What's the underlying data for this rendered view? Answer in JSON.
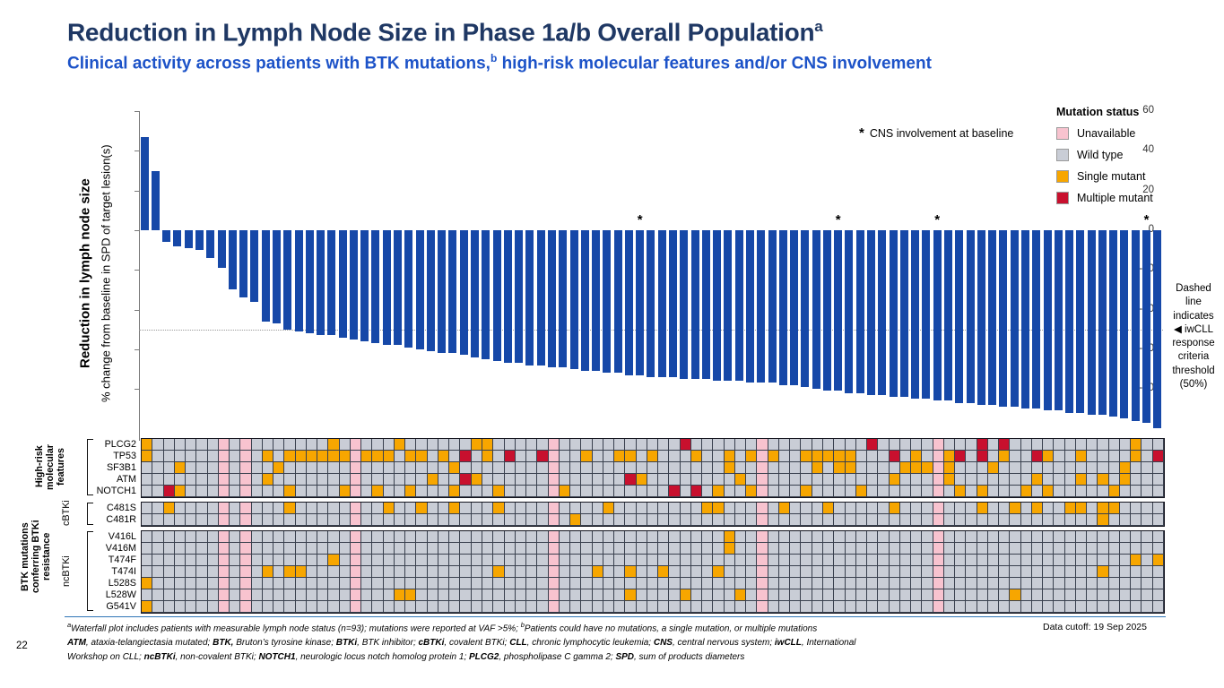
{
  "slide": {
    "title": "Reduction in Lymph Node Size in Phase 1a/b Overall Population",
    "title_sup": "a",
    "subtitle_pre": "Clinical activity across patients with BTK mutations,",
    "subtitle_sup": "b",
    "subtitle_post": " high-risk molecular features and/or CNS involvement",
    "page_number": "22",
    "data_cutoff": "Data cutoff: 19 Sep 2025"
  },
  "colors": {
    "bar_blue": "#1648a8",
    "title_navy": "#1f3864",
    "subtitle_blue": "#1d53c8",
    "unavailable_pink": "#f8c3cf",
    "wild_type_gray": "#c9cdd6",
    "single_mutant_orange": "#f7a600",
    "multiple_mutant_red": "#c8102e",
    "divider_blue": "#2e75b6"
  },
  "chart_data": {
    "type": "bar",
    "title": "",
    "ylabel_bold": "Reduction in lymph node size",
    "ylabel": "% change from baseline in SPD of target lesion(s)",
    "xlabel": "",
    "ylim": [
      -105,
      60
    ],
    "yticks": [
      60,
      40,
      20,
      0,
      -20,
      -40,
      -60,
      -80
    ],
    "n_patients": 93,
    "grid": false,
    "threshold_value": -50,
    "values": [
      47,
      30,
      -6,
      -8,
      -9,
      -10,
      -14,
      -19,
      -30,
      -34,
      -36,
      -46,
      -47,
      -50,
      -51,
      -52,
      -53,
      -53,
      -54,
      -55,
      -56,
      -57,
      -58,
      -58,
      -59,
      -60,
      -61,
      -62,
      -62,
      -63,
      -64,
      -65,
      -66,
      -67,
      -67,
      -68,
      -68,
      -69,
      -69,
      -70,
      -71,
      -71,
      -72,
      -72,
      -73,
      -73,
      -74,
      -74,
      -74,
      -75,
      -75,
      -75,
      -76,
      -76,
      -76,
      -77,
      -77,
      -77,
      -78,
      -78,
      -79,
      -80,
      -81,
      -81,
      -82,
      -82,
      -83,
      -83,
      -84,
      -84,
      -85,
      -85,
      -86,
      -86,
      -87,
      -87,
      -88,
      -88,
      -89,
      -89,
      -90,
      -90,
      -91,
      -91,
      -92,
      -92,
      -93,
      -93,
      -94,
      -95,
      -96,
      -97,
      -100
    ],
    "asterisk_bars": [
      46,
      64,
      73,
      92
    ]
  },
  "annotations": {
    "cns_symbol": "*",
    "cns_text": "CNS involvement at baseline",
    "threshold_note_lines": [
      "Dashed",
      "line",
      "indicates",
      "◀ iwCLL",
      "response",
      "criteria",
      "threshold",
      "(50%)"
    ]
  },
  "legend": {
    "title": "Mutation status",
    "items": [
      {
        "label": "Unavailable",
        "color": "#f8c3cf"
      },
      {
        "label": "Wild type",
        "color": "#c9cdd6"
      },
      {
        "label": "Single mutant",
        "color": "#f7a600"
      },
      {
        "label": "Multiple mutant",
        "color": "#c8102e"
      }
    ]
  },
  "heatmap": {
    "n_cols": 93,
    "unavailable_cols": [
      8,
      10,
      20,
      38,
      57,
      73
    ],
    "group_labels": {
      "high_risk": "High-risk molecular features",
      "btk": "BTK mutations conferring BTKi resistance",
      "cbtki": "cBTKi",
      "ncbtki": "ncBTKi"
    },
    "blocks": [
      {
        "rows": [
          {
            "label": "PLCG2",
            "single": [
              1,
              18,
              24,
              31,
              32,
              91
            ],
            "multiple": [
              50,
              67,
              77,
              79
            ]
          },
          {
            "label": "TP53",
            "single": [
              1,
              12,
              14,
              15,
              16,
              17,
              18,
              19,
              21,
              22,
              23,
              25,
              26,
              28,
              32,
              41,
              44,
              45,
              47,
              51,
              54,
              56,
              58,
              61,
              62,
              63,
              64,
              65,
              71,
              74,
              79,
              83,
              86,
              91
            ],
            "multiple": [
              30,
              34,
              37,
              69,
              75,
              77,
              82,
              93
            ]
          },
          {
            "label": "SF3B1",
            "single": [
              4,
              13,
              29,
              54,
              62,
              64,
              65,
              70,
              71,
              72,
              74,
              78,
              90
            ],
            "multiple": []
          },
          {
            "label": "ATM",
            "single": [
              12,
              27,
              31,
              46,
              55,
              69,
              74,
              82,
              86,
              88,
              90
            ],
            "multiple": [
              30,
              45
            ]
          },
          {
            "label": "NOTCH1",
            "single": [
              4,
              14,
              19,
              22,
              25,
              29,
              33,
              39,
              53,
              56,
              61,
              66,
              75,
              77,
              81,
              83,
              89
            ],
            "multiple": [
              3,
              49,
              51
            ]
          }
        ]
      },
      {
        "rows": [
          {
            "label": "C481S",
            "single": [
              3,
              14,
              23,
              26,
              29,
              33,
              43,
              52,
              53,
              59,
              63,
              69,
              77,
              80,
              82,
              85,
              86,
              88,
              89
            ],
            "multiple": []
          },
          {
            "label": "C481R",
            "single": [
              40,
              88
            ],
            "multiple": []
          }
        ]
      },
      {
        "rows": [
          {
            "label": "V416L",
            "single": [
              54
            ],
            "multiple": []
          },
          {
            "label": "V416M",
            "single": [
              54
            ],
            "multiple": []
          },
          {
            "label": "T474F",
            "single": [
              18,
              91,
              93
            ],
            "multiple": []
          },
          {
            "label": "T474I",
            "single": [
              12,
              14,
              15,
              33,
              42,
              45,
              48,
              53,
              88
            ],
            "multiple": []
          },
          {
            "label": "L528S",
            "single": [
              1
            ],
            "multiple": []
          },
          {
            "label": "L528W",
            "single": [
              24,
              25,
              45,
              50,
              55,
              80
            ],
            "multiple": []
          },
          {
            "label": "G541V",
            "single": [
              1
            ],
            "multiple": []
          }
        ]
      }
    ]
  },
  "footnotes": {
    "line1": [
      {
        "t": "a",
        "sup": true
      },
      {
        "t": "Waterfall plot includes patients with measurable lymph node status (n=93); mutations were reported at VAF >5%; "
      },
      {
        "t": "b",
        "sup": true
      },
      {
        "t": "Patients could have no mutations, a single mutation, or multiple mutations"
      }
    ],
    "line2": [
      {
        "t": "ATM",
        "b": true
      },
      {
        "t": ", ataxia-telangiectasia mutated; "
      },
      {
        "t": "BTK,",
        "b": true
      },
      {
        "t": " Bruton’s tyrosine kinase; "
      },
      {
        "t": "BTKi",
        "b": true
      },
      {
        "t": ", BTK inhibitor; "
      },
      {
        "t": "cBTKi",
        "b": true
      },
      {
        "t": ", covalent BTKi; "
      },
      {
        "t": "CLL",
        "b": true
      },
      {
        "t": ", chronic lymphocytic leukemia; "
      },
      {
        "t": "CNS",
        "b": true
      },
      {
        "t": ", central nervous system; "
      },
      {
        "t": "iwCLL",
        "b": true
      },
      {
        "t": ", International"
      }
    ],
    "line3": [
      {
        "t": "Workshop on CLL; "
      },
      {
        "t": "ncBTKi",
        "b": true
      },
      {
        "t": ", non-covalent BTKi; "
      },
      {
        "t": "NOTCH1",
        "b": true
      },
      {
        "t": ", neurologic locus notch homolog protein 1; "
      },
      {
        "t": "PLCG2",
        "b": true
      },
      {
        "t": ", phospholipase C gamma 2; "
      },
      {
        "t": "SPD",
        "b": true
      },
      {
        "t": ", sum of products diameters"
      }
    ]
  }
}
